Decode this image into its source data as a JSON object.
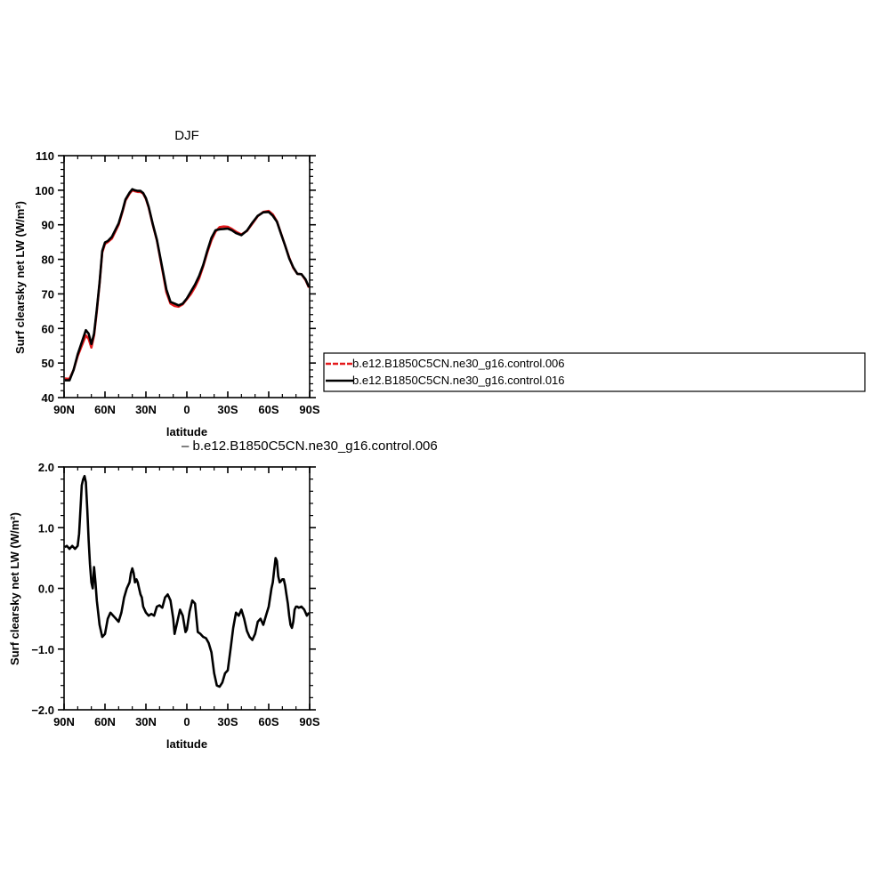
{
  "figure": {
    "legend": {
      "entries": [
        {
          "label": "b.e12.B1850C5CN.ne30_g16.control.006",
          "color": "#e41a1c",
          "dashed": true
        },
        {
          "label": "b.e12.B1850C5CN.ne30_g16.control.016",
          "color": "#000000",
          "dashed": false
        }
      ]
    },
    "diff_label": "– b.e12.B1850C5CN.ne30_g16.control.006"
  },
  "chart_data": [
    {
      "type": "line",
      "title": "DJF",
      "xlabel": "latitude",
      "ylabel": "Surf clearsky net LW (W/m²)",
      "xlim": [
        90,
        -90
      ],
      "ylim": [
        40,
        110
      ],
      "x_ticks": [
        90,
        60,
        30,
        0,
        -30,
        -60,
        -90
      ],
      "x_tick_labels": [
        "90N",
        "60N",
        "30N",
        "0",
        "30S",
        "60S",
        "90S"
      ],
      "y_ticks": [
        40,
        50,
        60,
        70,
        80,
        90,
        100,
        110
      ],
      "y_tick_labels": [
        "40",
        "50",
        "60",
        "70",
        "80",
        "90",
        "100",
        "110"
      ],
      "grid": false,
      "series": [
        {
          "name": "b.e12.B1850C5CN.ne30_g16.control.006",
          "color": "#e41a1c",
          "x": [
            89.5,
            86,
            83,
            80,
            77,
            74,
            72,
            70,
            68,
            66,
            64,
            62,
            60,
            58,
            55,
            50,
            47,
            45,
            42,
            40,
            38,
            36,
            34,
            32,
            30,
            28,
            25,
            22,
            18,
            15,
            12,
            9,
            6,
            3,
            0,
            -3,
            -6,
            -9,
            -12,
            -15,
            -18,
            -21,
            -24,
            -27,
            -30,
            -33,
            -36,
            -40,
            -44,
            -48,
            -52,
            -56,
            -60,
            -63,
            -66,
            -69,
            -72,
            -75,
            -78,
            -81,
            -84,
            -87,
            -89.5
          ],
          "values": [
            45.5,
            45.4,
            48,
            52,
            55,
            58,
            57,
            54.5,
            58,
            65,
            73,
            82,
            84.5,
            85,
            86,
            90,
            94,
            97,
            99,
            100,
            99.7,
            99.5,
            99.5,
            99,
            97.5,
            95,
            90,
            85.5,
            77,
            70.5,
            67.2,
            66.5,
            66.3,
            67,
            68.5,
            70,
            72,
            74.5,
            78,
            82,
            85.5,
            88,
            89.3,
            89.5,
            89.4,
            88.8,
            88,
            87.2,
            88.2,
            90.3,
            92.5,
            93.7,
            94,
            93,
            91,
            87.5,
            84,
            80.5,
            77.5,
            75.8,
            75.7,
            74,
            71.8
          ]
        },
        {
          "name": "b.e12.B1850C5CN.ne30_g16.control.016",
          "color": "#000000",
          "x": [
            89.5,
            86,
            83,
            80,
            77,
            74,
            72,
            70,
            68,
            66,
            64,
            62,
            60,
            58,
            55,
            50,
            47,
            45,
            42,
            40,
            38,
            36,
            34,
            32,
            30,
            28,
            25,
            22,
            18,
            15,
            12,
            9,
            6,
            3,
            0,
            -3,
            -6,
            -9,
            -12,
            -15,
            -18,
            -21,
            -24,
            -27,
            -30,
            -33,
            -36,
            -40,
            -44,
            -48,
            -52,
            -56,
            -60,
            -63,
            -66,
            -69,
            -72,
            -75,
            -78,
            -81,
            -84,
            -87,
            -89.5
          ],
          "values": [
            45,
            45,
            48,
            52.5,
            56,
            59.5,
            58.5,
            55.5,
            58.5,
            65.5,
            73.3,
            82.4,
            84.9,
            85.3,
            86.5,
            90.4,
            94.3,
            97.3,
            99.3,
            100.3,
            100,
            99.8,
            99.8,
            99.2,
            97.7,
            95.2,
            90.2,
            85.7,
            77.5,
            71.3,
            67.7,
            67.2,
            66.7,
            67.2,
            68.7,
            70.7,
            72.7,
            75.2,
            78.4,
            82.5,
            86.2,
            88.4,
            88.7,
            88.8,
            88.9,
            88.4,
            87.6,
            87,
            88.3,
            90.6,
            92.6,
            93.6,
            93.7,
            92.6,
            90.9,
            87.4,
            84,
            80.3,
            77.7,
            75.8,
            75.7,
            74.2,
            72
          ]
        }
      ]
    },
    {
      "type": "line",
      "title": "",
      "xlabel": "latitude",
      "ylabel": "Surf clearsky net LW (W/m²)",
      "xlim": [
        90,
        -90
      ],
      "ylim": [
        -2.0,
        2.0
      ],
      "x_ticks": [
        90,
        60,
        30,
        0,
        -30,
        -60,
        -90
      ],
      "x_tick_labels": [
        "90N",
        "60N",
        "30N",
        "0",
        "30S",
        "60S",
        "90S"
      ],
      "y_ticks": [
        -2.0,
        -1.0,
        0.0,
        1.0,
        2.0
      ],
      "y_tick_labels": [
        "−2.0",
        "−1.0",
        "0.0",
        "1.0",
        "2.0"
      ],
      "grid": false,
      "series": [
        {
          "color": "#000000",
          "x": [
            89.5,
            88,
            86,
            84,
            82,
            80,
            79,
            78,
            77,
            76,
            75,
            74,
            73,
            72,
            71,
            70,
            69,
            68,
            67,
            66,
            64,
            62,
            60,
            58,
            56,
            54,
            52,
            50,
            48,
            46,
            44,
            42,
            41,
            40,
            39,
            38,
            37,
            36,
            35,
            34,
            33,
            32,
            30,
            28,
            26,
            24,
            22,
            20,
            18,
            16,
            14,
            12,
            10,
            9,
            7,
            5,
            3,
            1,
            0,
            -2,
            -4,
            -6,
            -8,
            -10,
            -12,
            -14,
            -16,
            -18,
            -20,
            -22,
            -24,
            -26,
            -28,
            -30,
            -32,
            -34,
            -36,
            -38,
            -40,
            -42,
            -44,
            -46,
            -48,
            -50,
            -52,
            -54,
            -56,
            -58,
            -60,
            -62,
            -63,
            -64,
            -65,
            -66,
            -67,
            -68,
            -69,
            -70,
            -71,
            -72,
            -73,
            -74,
            -75,
            -76,
            -77,
            -78,
            -79,
            -80,
            -81,
            -82,
            -84,
            -86,
            -88,
            -89.5
          ],
          "values": [
            0.68,
            0.7,
            0.65,
            0.7,
            0.65,
            0.7,
            0.9,
            1.3,
            1.7,
            1.8,
            1.85,
            1.75,
            1.3,
            0.8,
            0.4,
            0.1,
            0.0,
            0.35,
            0.1,
            -0.2,
            -0.6,
            -0.8,
            -0.75,
            -0.5,
            -0.4,
            -0.45,
            -0.5,
            -0.55,
            -0.4,
            -0.15,
            0.0,
            0.1,
            0.25,
            0.33,
            0.25,
            0.1,
            0.15,
            0.1,
            0.0,
            -0.1,
            -0.15,
            -0.3,
            -0.4,
            -0.45,
            -0.42,
            -0.45,
            -0.3,
            -0.28,
            -0.32,
            -0.15,
            -0.1,
            -0.2,
            -0.5,
            -0.75,
            -0.55,
            -0.35,
            -0.45,
            -0.72,
            -0.68,
            -0.38,
            -0.2,
            -0.25,
            -0.72,
            -0.75,
            -0.8,
            -0.82,
            -0.9,
            -1.05,
            -1.4,
            -1.6,
            -1.62,
            -1.55,
            -1.4,
            -1.35,
            -1.0,
            -0.65,
            -0.4,
            -0.45,
            -0.35,
            -0.5,
            -0.7,
            -0.8,
            -0.85,
            -0.75,
            -0.55,
            -0.5,
            -0.6,
            -0.45,
            -0.3,
            0.0,
            0.1,
            0.3,
            0.5,
            0.45,
            0.2,
            0.1,
            0.12,
            0.15,
            0.15,
            0.05,
            -0.1,
            -0.25,
            -0.45,
            -0.6,
            -0.65,
            -0.55,
            -0.35,
            -0.3,
            -0.3,
            -0.32,
            -0.3,
            -0.35,
            -0.45,
            -0.4
          ]
        }
      ]
    }
  ]
}
